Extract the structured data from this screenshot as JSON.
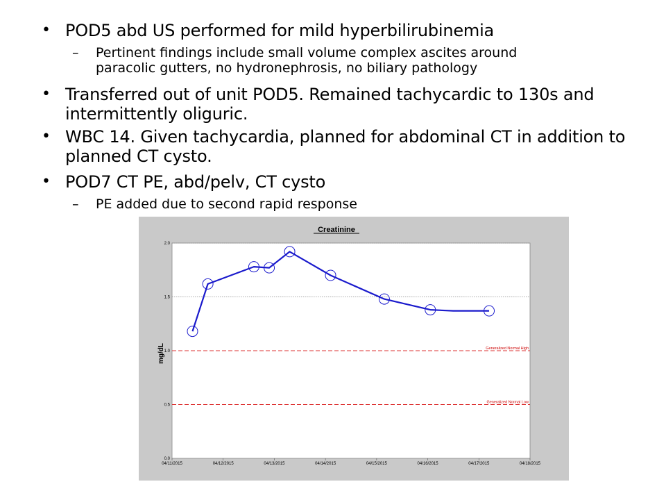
{
  "slide": {
    "bullets": [
      {
        "text": "POD5 abd US performed for mild hyperbilirubinemia"
      },
      {
        "text": "Transferred out of unit POD5. Remained tachycardic to 130s and"
      },
      {
        "text": "WBC 14. Given tachycardia, planned for abdominal CT in addition to"
      },
      {
        "text": "POD7 CT PE, abd/pelv, CT cysto"
      }
    ],
    "continuations": [
      "intermittently oliguric.",
      "planned CT cysto."
    ],
    "subs": [
      "Pertinent findings include small volume complex ascites around",
      "paracolic gutters, no hydronephrosis, no biliary pathology",
      "PE added due to second rapid response"
    ]
  },
  "chart_data": {
    "type": "line",
    "title": "Creatinine",
    "ylabel": "mg/dL",
    "ylim": [
      0.0,
      2.0
    ],
    "y_ticks": [
      "0.0",
      "0.5",
      "1.0",
      "1.5",
      "2.0"
    ],
    "x_ticks": [
      "04/11/2015",
      "04/12/2015",
      "04/13/2015",
      "04/14/2015",
      "04/15/2015",
      "04/16/2015",
      "04/17/2015",
      "04/18/2015"
    ],
    "xlim_days": [
      0,
      7
    ],
    "series": [
      {
        "color": "#1a1acc",
        "x": [
          0.4,
          0.7,
          1.6,
          1.9,
          2.3,
          3.1,
          4.15,
          5.05,
          5.5,
          6.2
        ],
        "y": [
          1.18,
          1.62,
          1.78,
          1.77,
          1.92,
          1.7,
          1.48,
          1.38,
          1.37,
          1.37
        ],
        "markers": [
          0,
          1,
          2,
          3,
          4,
          5,
          6,
          7,
          9
        ]
      }
    ],
    "reference_lines": [
      {
        "y": 1.0,
        "label": "Generalized Normal High",
        "color": "#dd3333"
      },
      {
        "y": 0.5,
        "label": "Generalized Normal Low",
        "color": "#dd3333"
      }
    ],
    "colors": {
      "frame": "#c9c9c9",
      "plot_bg": "#ffffff",
      "grid": "#888888",
      "line": "#1a1acc"
    }
  }
}
